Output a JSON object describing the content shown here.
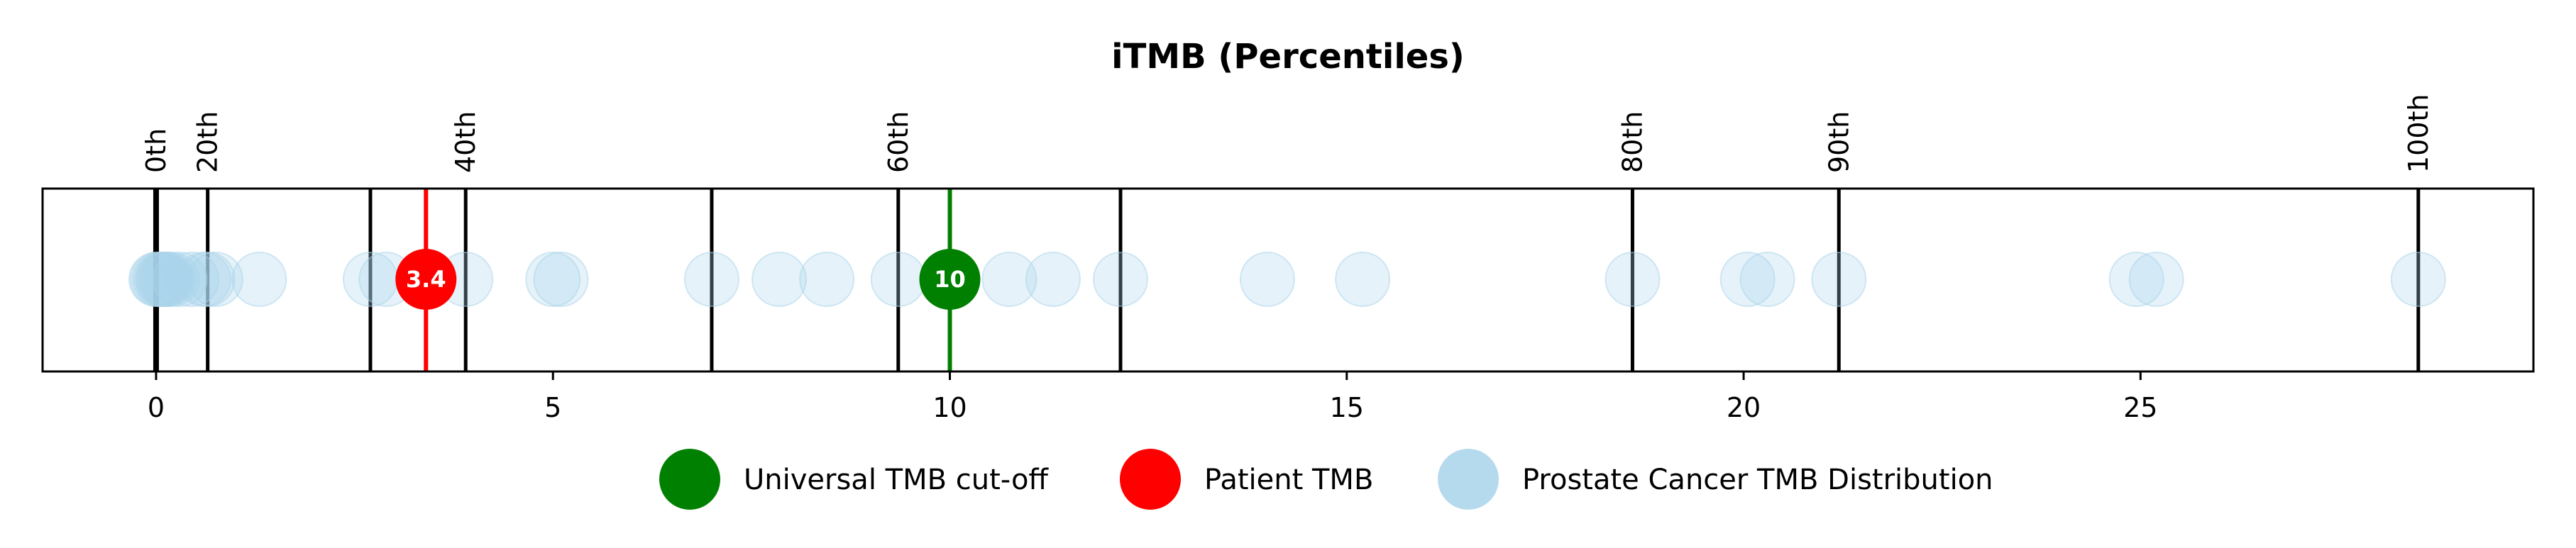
{
  "chart_data": {
    "type": "scatter",
    "title": "iTMB (Percentiles)",
    "xlabel": "",
    "ylabel": "",
    "xlim": [
      -1.43,
      29.95
    ],
    "xticks": [
      0,
      5,
      10,
      15,
      20,
      25
    ],
    "grid": false,
    "legend_position": "bottom",
    "percentile_lines": [
      {
        "x": 0.0,
        "label": "0th"
      },
      {
        "x": 0.65,
        "label": "20th"
      },
      {
        "x": 2.7,
        "label": ""
      },
      {
        "x": 3.9,
        "label": "40th"
      },
      {
        "x": 7.0,
        "label": ""
      },
      {
        "x": 9.35,
        "label": "60th"
      },
      {
        "x": 12.15,
        "label": ""
      },
      {
        "x": 18.6,
        "label": "80th"
      },
      {
        "x": 21.2,
        "label": "90th"
      },
      {
        "x": 28.5,
        "label": "100th"
      }
    ],
    "series": [
      {
        "name": "Prostate Cancer TMB Distribution",
        "color": "#a9d4ea",
        "x": [
          0.0,
          0.02,
          0.05,
          0.08,
          0.1,
          0.12,
          0.15,
          0.2,
          0.3,
          0.45,
          0.6,
          0.65,
          0.75,
          1.3,
          2.7,
          2.9,
          3.9,
          5.0,
          5.1,
          7.0,
          7.85,
          8.45,
          9.35,
          10.75,
          11.3,
          12.15,
          14.0,
          15.2,
          18.6,
          20.05,
          20.3,
          21.2,
          24.95,
          25.2,
          28.5
        ]
      },
      {
        "name": "Patient TMB",
        "color": "#ff0000",
        "x": [
          3.4
        ],
        "label": "3.4"
      },
      {
        "name": "Universal TMB cut-off",
        "color": "#008000",
        "x": [
          10
        ],
        "label": "10"
      }
    ],
    "legend": [
      {
        "label": "Universal TMB cut-off",
        "color": "#008000"
      },
      {
        "label": "Patient TMB",
        "color": "#ff0000"
      },
      {
        "label": "Prostate Cancer TMB Distribution",
        "color": "#a9d4ea"
      }
    ]
  }
}
